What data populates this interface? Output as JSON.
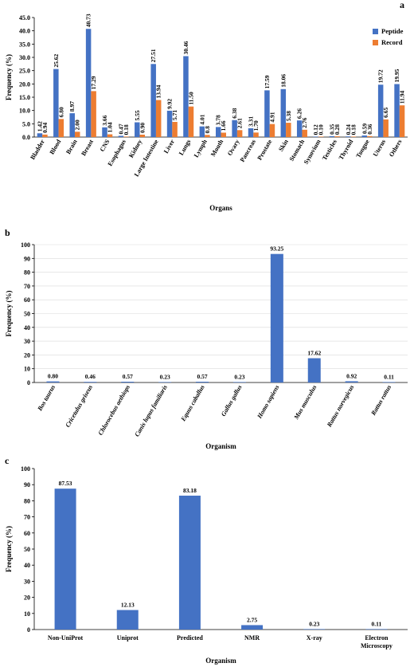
{
  "chart_data": [
    {
      "id": "a",
      "type": "bar",
      "panel_label": "a",
      "xlabel": "Organs",
      "ylabel": "Frequency (%)",
      "ylim": [
        0,
        45
      ],
      "yticks": [
        "0.0",
        "5.0",
        "10.0",
        "15.0",
        "20.0",
        "25.0",
        "30.0",
        "35.0",
        "40.0",
        "45.0"
      ],
      "grid": false,
      "legend": "top-right",
      "categories": [
        "Bladder",
        "Blood",
        "Brain",
        "Breast",
        "CNS",
        "Esophagus",
        "Kidney",
        "Large Intestine",
        "Liver",
        "Lungs",
        "Lymph",
        "Mouth",
        "Ovary",
        "Pancreas",
        "Prostate",
        "Skin",
        "Stomach",
        "Synovium",
        "Testicles",
        "Thyroid",
        "Tongue",
        "Uterus",
        "Others"
      ],
      "series": [
        {
          "name": "Peptide",
          "color": "#4472C4",
          "values": [
            1.42,
            25.62,
            8.97,
            40.73,
            3.66,
            0.47,
            5.55,
            27.51,
            9.92,
            30.46,
            4.01,
            3.78,
            6.38,
            3.31,
            17.59,
            18.06,
            6.26,
            0.12,
            0.35,
            0.24,
            0.59,
            19.72,
            19.95
          ],
          "labels": [
            "1.42",
            "25.62",
            "8.97",
            "40.73",
            "3.66",
            "0.47",
            "5.55",
            "27.51",
            "9.92",
            "30.46",
            "4.01",
            "3.78",
            "6.38",
            "3.31",
            "17.59",
            "18.06",
            "6.26",
            "0.12",
            "0.35",
            "0.24",
            "0.59",
            "19.72",
            "19.95"
          ]
        },
        {
          "name": "Record",
          "color": "#ED7D31",
          "values": [
            0.94,
            6.8,
            2.0,
            17.29,
            1.04,
            0.18,
            0.9,
            13.94,
            5.71,
            11.5,
            0.8,
            1.66,
            2.61,
            1.7,
            4.91,
            5.38,
            2.76,
            0.1,
            0.28,
            0.18,
            0.36,
            6.65,
            11.94
          ],
          "labels": [
            "0.94",
            "6.80",
            "2.00",
            "17.29",
            "1.04",
            "0.18",
            "0.90",
            "13.94",
            "5.71",
            "11.50",
            "0.8",
            "1.66",
            "2.61",
            "1.70",
            "4.91",
            "5.38",
            "2.76",
            "0.10",
            "0.28",
            "0.18",
            "0.36",
            "6.65",
            "11.94"
          ]
        }
      ]
    },
    {
      "id": "b",
      "type": "bar",
      "panel_label": "b",
      "xlabel": "Organism",
      "ylabel": "Frequency (%)",
      "ylim": [
        0,
        100
      ],
      "yticks": [
        "0",
        "10",
        "20",
        "30",
        "40",
        "50",
        "60",
        "70",
        "80",
        "90",
        "100"
      ],
      "grid": true,
      "categories": [
        "Bos taurus",
        "Cricetulus griseus",
        "Chlorocebus aethiops",
        "Canis lupus familiaris",
        "Equus caballus",
        "Gallus gallus",
        "Homo sapiens",
        "Mus musculus",
        "Rattus norvegicus",
        "Rattus rattus"
      ],
      "series": [
        {
          "color": "#4472C4",
          "values": [
            0.8,
            0.46,
            0.57,
            0.23,
            0.57,
            0.23,
            93.25,
            17.62,
            0.92,
            0.11
          ],
          "labels": [
            "0.80",
            "0.46",
            "0.57",
            "0.23",
            "0.57",
            "0.23",
            "93.25",
            "17.62",
            "0.92",
            "0.11"
          ]
        }
      ]
    },
    {
      "id": "c",
      "type": "bar",
      "panel_label": "c",
      "xlabel": "Organism",
      "ylabel": "Frequency (%)",
      "ylim": [
        0,
        100
      ],
      "yticks": [
        "0",
        "10",
        "20",
        "30",
        "40",
        "50",
        "60",
        "70",
        "80",
        "90",
        "100"
      ],
      "grid": false,
      "categories": [
        "Non-UniProt",
        "Uniprot",
        "Predicted",
        "NMR",
        "X-ray",
        "Electron Microscopy"
      ],
      "category_lines": [
        [
          "Non-UniProt"
        ],
        [
          "Uniprot"
        ],
        [
          "Predicted"
        ],
        [
          "NMR"
        ],
        [
          "X-ray"
        ],
        [
          "Electron",
          "Microscopy"
        ]
      ],
      "series": [
        {
          "color": "#4472C4",
          "values": [
            87.53,
            12.13,
            83.18,
            2.75,
            0.23,
            0.11
          ],
          "labels": [
            "87.53",
            "12.13",
            "83.18",
            "2.75",
            "0.23",
            "0.11"
          ]
        }
      ]
    }
  ]
}
